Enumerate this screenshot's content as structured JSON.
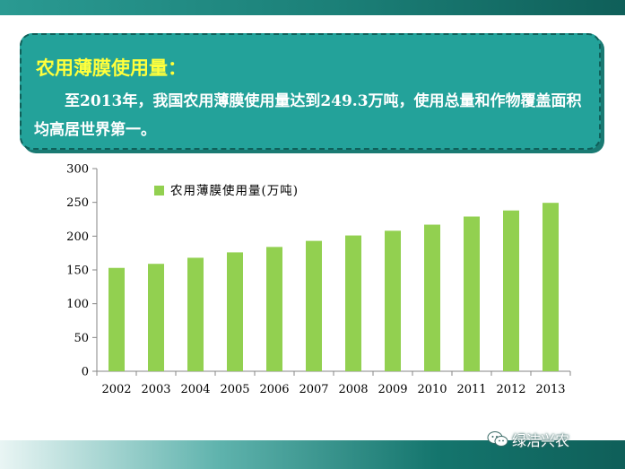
{
  "callout": {
    "title": "农用薄膜使用量：",
    "body": "至2013年，我国农用薄膜使用量达到249.3万吨，使用总量和作物覆盖面积均高居世界第一。"
  },
  "watermark": {
    "text": "绿洁兴农",
    "icon": "wechat-icon"
  },
  "colors": {
    "bar": "#92d050",
    "callout_bg": "#23a29a",
    "callout_title": "#ffff3c"
  },
  "chart_data": {
    "type": "bar",
    "categories": [
      "2002",
      "2003",
      "2004",
      "2005",
      "2006",
      "2007",
      "2008",
      "2009",
      "2010",
      "2011",
      "2012",
      "2013"
    ],
    "series": [
      {
        "name": "农用薄膜使用量(万吨)",
        "values": [
          153,
          159,
          168,
          176,
          184,
          193,
          201,
          208,
          217,
          229,
          238,
          249.3
        ]
      }
    ],
    "ylim": [
      0,
      300
    ],
    "yticks": [
      0,
      50,
      100,
      150,
      200,
      250,
      300
    ],
    "title": "",
    "xlabel": "",
    "ylabel": "",
    "legend": "top-left",
    "grid": false
  }
}
